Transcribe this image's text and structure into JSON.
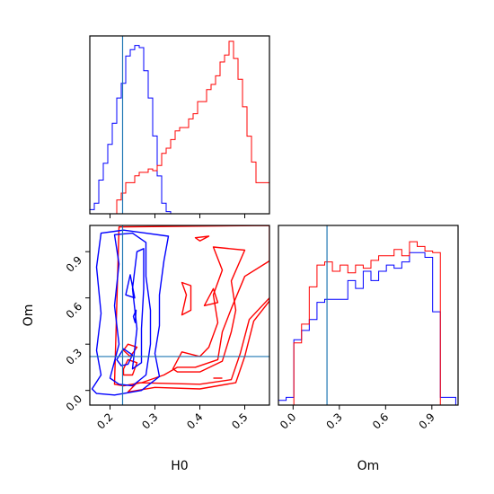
{
  "chart_data": {
    "type": "corner",
    "params": [
      "H0",
      "Om"
    ],
    "xlabel_h0": "H0",
    "xlabel_om": "Om",
    "ylabel_om": "Om",
    "h0_ticks": [
      "0.2",
      "0.3",
      "0.4",
      "0.5"
    ],
    "om_ticks": [
      "0.0",
      "0.3",
      "0.6",
      "0.9"
    ],
    "h0_range": [
      0.155,
      0.555
    ],
    "om_range": [
      -0.095,
      1.07
    ],
    "truth": {
      "H0": 0.228,
      "Om": 0.22,
      "color": "#1f77b4"
    },
    "series_colors": {
      "blue": "#0000ff",
      "red": "#ff0000"
    },
    "hist_h0": {
      "bins": [
        0.155,
        0.165,
        0.175,
        0.185,
        0.195,
        0.205,
        0.215,
        0.225,
        0.235,
        0.245,
        0.255,
        0.265,
        0.275,
        0.285,
        0.295,
        0.305,
        0.315,
        0.325,
        0.335,
        0.345,
        0.355,
        0.365,
        0.375,
        0.385,
        0.395,
        0.405,
        0.415,
        0.425,
        0.435,
        0.445,
        0.455,
        0.465,
        0.475,
        0.485,
        0.495,
        0.505,
        0.515,
        0.525,
        0.535,
        0.545,
        0.555
      ],
      "blue": [
        0.02,
        0.05,
        0.16,
        0.24,
        0.33,
        0.43,
        0.55,
        0.62,
        0.75,
        0.78,
        0.8,
        0.79,
        0.68,
        0.55,
        0.37,
        0.18,
        0.05,
        0.01,
        0,
        0,
        0,
        0,
        0,
        0,
        0,
        0,
        0,
        0,
        0,
        0,
        0,
        0,
        0,
        0,
        0,
        0,
        0,
        0,
        0,
        0
      ],
      "red": [
        0,
        0,
        0,
        0,
        0,
        0,
        0.08,
        0.12,
        0.18,
        0.18,
        0.22,
        0.24,
        0.24,
        0.26,
        0.25,
        0.28,
        0.35,
        0.38,
        0.43,
        0.48,
        0.5,
        0.5,
        0.55,
        0.58,
        0.65,
        0.65,
        0.72,
        0.75,
        0.8,
        0.88,
        0.92,
        1.0,
        0.9,
        0.78,
        0.62,
        0.45,
        0.3,
        0.18,
        0.18,
        0.18
      ]
    },
    "hist_om": {
      "bins": [
        -0.095,
        -0.045,
        0.005,
        0.055,
        0.105,
        0.155,
        0.205,
        0.255,
        0.305,
        0.355,
        0.405,
        0.455,
        0.505,
        0.555,
        0.605,
        0.655,
        0.705,
        0.755,
        0.805,
        0.855,
        0.905,
        0.955,
        1.005,
        1.055
      ],
      "blue": [
        0.03,
        0.05,
        0.42,
        0.48,
        0.55,
        0.66,
        0.68,
        0.68,
        0.68,
        0.8,
        0.75,
        0.86,
        0.8,
        0.86,
        0.9,
        0.88,
        0.92,
        0.98,
        0.98,
        0.95,
        0.6,
        0.05,
        0.05
      ],
      "red": [
        0,
        0,
        0.4,
        0.52,
        0.76,
        0.9,
        0.92,
        0.86,
        0.9,
        0.85,
        0.9,
        0.88,
        0.93,
        0.96,
        0.96,
        1.0,
        0.96,
        1.05,
        1.02,
        0.99,
        0.98,
        0,
        0
      ]
    },
    "contours": {
      "blue": [
        [
          [
            0.16,
            0.01
          ],
          [
            0.18,
            0.1
          ],
          [
            0.17,
            0.26
          ],
          [
            0.18,
            0.5
          ],
          [
            0.17,
            0.8
          ],
          [
            0.18,
            1.02
          ],
          [
            0.23,
            1.04
          ],
          [
            0.28,
            1.02
          ],
          [
            0.33,
            1.0
          ],
          [
            0.32,
            0.84
          ],
          [
            0.31,
            0.62
          ],
          [
            0.31,
            0.42
          ],
          [
            0.3,
            0.24
          ],
          [
            0.31,
            0.09
          ],
          [
            0.27,
            0.0
          ],
          [
            0.21,
            -0.03
          ],
          [
            0.17,
            -0.02
          ]
        ],
        [
          [
            0.2,
            0.08
          ],
          [
            0.22,
            0.3
          ],
          [
            0.21,
            0.55
          ],
          [
            0.22,
            0.82
          ],
          [
            0.21,
            1.01
          ],
          [
            0.25,
            1.02
          ],
          [
            0.28,
            0.96
          ],
          [
            0.28,
            0.74
          ],
          [
            0.29,
            0.52
          ],
          [
            0.29,
            0.3
          ],
          [
            0.28,
            0.1
          ],
          [
            0.25,
            0.03
          ],
          [
            0.22,
            0.04
          ]
        ],
        [
          [
            0.25,
            0.14
          ],
          [
            0.26,
            0.4
          ],
          [
            0.25,
            0.66
          ],
          [
            0.26,
            0.9
          ],
          [
            0.275,
            0.92
          ],
          [
            0.275,
            0.66
          ],
          [
            0.27,
            0.4
          ],
          [
            0.27,
            0.18
          ]
        ],
        [
          [
            0.215,
            0.2
          ],
          [
            0.23,
            0.27
          ],
          [
            0.25,
            0.23
          ],
          [
            0.24,
            0.17
          ],
          [
            0.225,
            0.16
          ]
        ],
        [
          [
            0.235,
            0.62
          ],
          [
            0.245,
            0.75
          ],
          [
            0.255,
            0.6
          ]
        ],
        [
          [
            0.252,
            0.48
          ],
          [
            0.258,
            0.52
          ],
          [
            0.256,
            0.44
          ]
        ]
      ],
      "red": [
        [
          [
            0.21,
            0.04
          ],
          [
            0.22,
            1.06
          ],
          [
            0.555,
            1.07
          ],
          [
            0.555,
            0.84
          ],
          [
            0.5,
            0.74
          ],
          [
            0.47,
            0.53
          ],
          [
            0.45,
            0.38
          ],
          [
            0.44,
            0.2
          ],
          [
            0.39,
            0.15
          ],
          [
            0.35,
            0.15
          ],
          [
            0.32,
            0.1
          ],
          [
            0.27,
            0.05
          ],
          [
            0.23,
            0.03
          ]
        ],
        [
          [
            0.555,
            0.58
          ],
          [
            0.52,
            0.45
          ],
          [
            0.5,
            0.22
          ],
          [
            0.48,
            0.05
          ],
          [
            0.4,
            0.01
          ],
          [
            0.3,
            0.02
          ],
          [
            0.24,
            -0.01
          ],
          [
            0.26,
            0.05
          ],
          [
            0.4,
            0.04
          ],
          [
            0.47,
            0.07
          ],
          [
            0.49,
            0.24
          ],
          [
            0.51,
            0.46
          ],
          [
            0.555,
            0.6
          ]
        ],
        [
          [
            0.34,
            0.14
          ],
          [
            0.36,
            0.25
          ],
          [
            0.4,
            0.22
          ],
          [
            0.42,
            0.28
          ],
          [
            0.44,
            0.44
          ],
          [
            0.43,
            0.62
          ],
          [
            0.45,
            0.78
          ],
          [
            0.43,
            0.93
          ],
          [
            0.5,
            0.91
          ],
          [
            0.47,
            0.71
          ],
          [
            0.48,
            0.52
          ],
          [
            0.47,
            0.38
          ],
          [
            0.45,
            0.19
          ],
          [
            0.4,
            0.12
          ],
          [
            0.35,
            0.12
          ]
        ],
        [
          [
            0.23,
            0.14
          ],
          [
            0.24,
            0.2
          ],
          [
            0.26,
            0.18
          ],
          [
            0.25,
            0.1
          ],
          [
            0.23,
            0.1
          ]
        ],
        [
          [
            0.23,
            0.26
          ],
          [
            0.24,
            0.3
          ],
          [
            0.26,
            0.28
          ],
          [
            0.245,
            0.22
          ]
        ],
        [
          [
            0.36,
            0.49
          ],
          [
            0.37,
            0.62
          ],
          [
            0.36,
            0.7
          ],
          [
            0.38,
            0.68
          ],
          [
            0.38,
            0.52
          ]
        ],
        [
          [
            0.41,
            0.55
          ],
          [
            0.43,
            0.66
          ],
          [
            0.44,
            0.57
          ]
        ],
        [
          [
            0.39,
            0.99
          ],
          [
            0.42,
            1.0
          ],
          [
            0.4,
            0.97
          ]
        ],
        [
          [
            0.43,
            0.08
          ],
          [
            0.45,
            0.08
          ]
        ]
      ]
    }
  }
}
